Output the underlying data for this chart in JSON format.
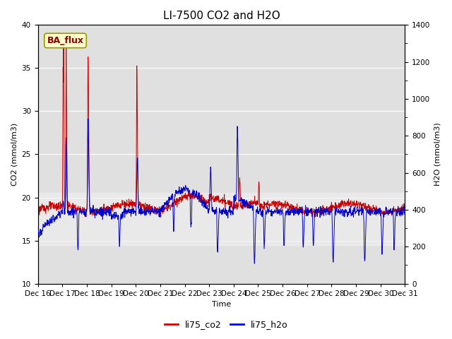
{
  "title": "LI-7500 CO2 and H2O",
  "xlabel": "Time",
  "ylabel_left": "CO2 (mmol/m3)",
  "ylabel_right": "H2O (mmol/m3)",
  "ylim_left": [
    10,
    40
  ],
  "ylim_right": [
    0,
    1400
  ],
  "yticks_left": [
    10,
    15,
    20,
    25,
    30,
    35,
    40
  ],
  "yticks_right": [
    0,
    200,
    400,
    600,
    800,
    1000,
    1200,
    1400
  ],
  "n_days": 15,
  "pts_per_day": 96,
  "xtick_labels": [
    "Dec 16",
    "Dec 17",
    "Dec 18",
    "Dec 19",
    "Dec 20",
    "Dec 21",
    "Dec 22",
    "Dec 23",
    "Dec 24",
    "Dec 25",
    "Dec 26",
    "Dec 27",
    "Dec 28",
    "Dec 29",
    "Dec 30",
    "Dec 31"
  ],
  "co2_color": "#cc0000",
  "h2o_color": "#0000cc",
  "annotation_text": "BA_flux",
  "annotation_bg": "#ffffcc",
  "annotation_border": "#999900",
  "plot_bg": "#e0e0e0",
  "fig_bg": "#ffffff",
  "legend_co2": "li75_co2",
  "legend_h2o": "li75_h2o",
  "title_fontsize": 11,
  "axis_fontsize": 8,
  "tick_fontsize": 7.5,
  "linewidth": 0.7
}
